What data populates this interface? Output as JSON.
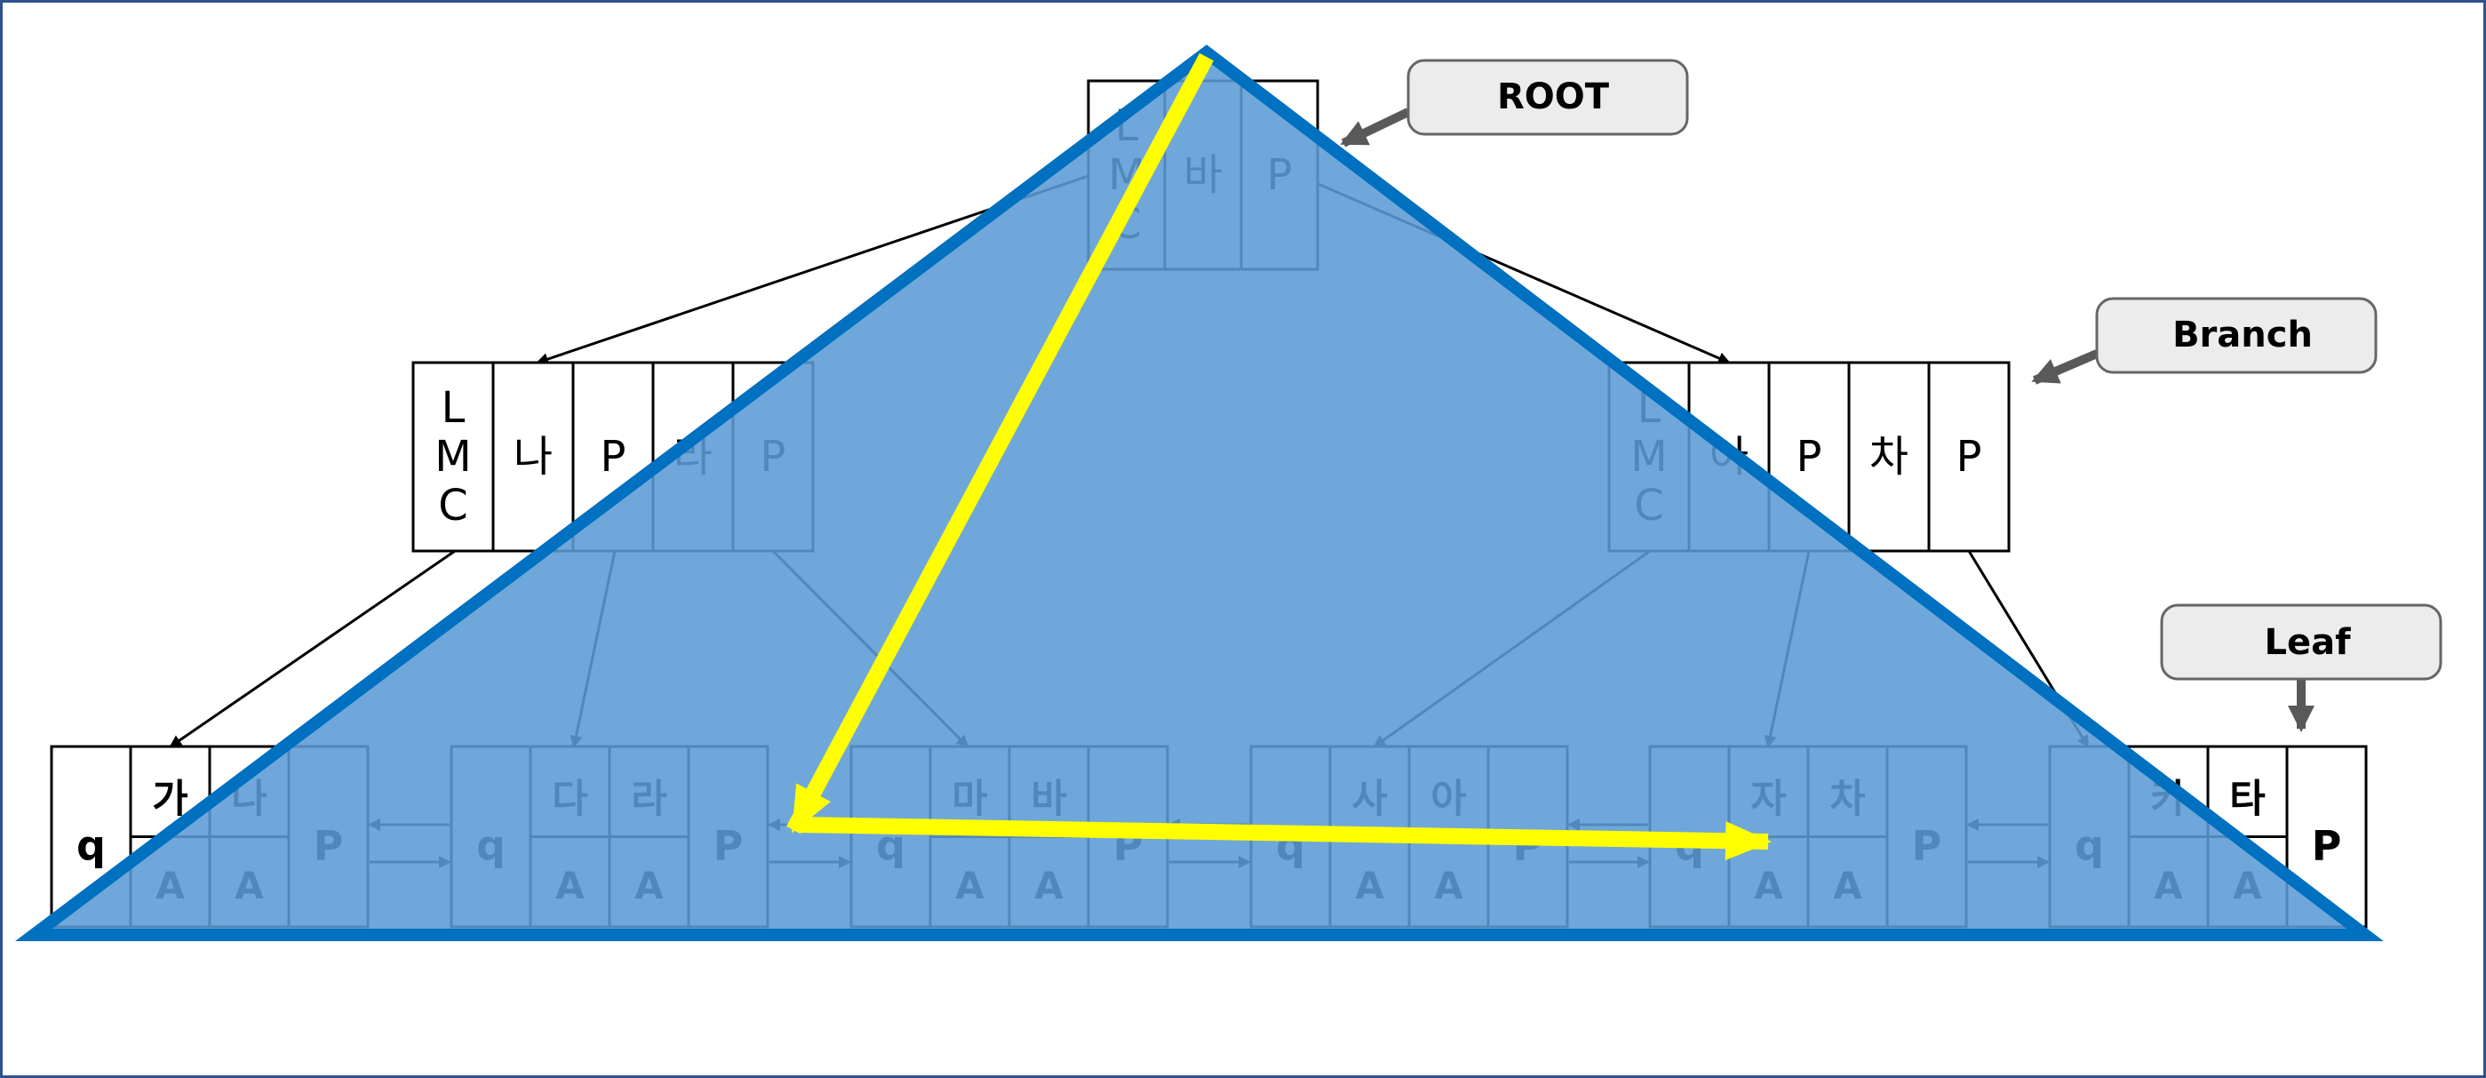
{
  "callouts": {
    "root": "ROOT",
    "branch": "Branch",
    "leaf": "Leaf"
  },
  "root_node": {
    "cells": [
      "L\nM\nC",
      "바",
      "P"
    ]
  },
  "branch_nodes": [
    {
      "cells": [
        "L\nM\nC",
        "나",
        "P",
        "라",
        "P"
      ]
    },
    {
      "cells": [
        "L\nM\nC",
        "아",
        "P",
        "차",
        "P"
      ]
    }
  ],
  "leaf_nodes": [
    {
      "prev": "q",
      "keys": [
        "가",
        "나"
      ],
      "rowids": [
        "A",
        "A"
      ],
      "next": "P"
    },
    {
      "prev": "q",
      "keys": [
        "다",
        "라"
      ],
      "rowids": [
        "A",
        "A"
      ],
      "next": "P"
    },
    {
      "prev": "q",
      "keys": [
        "마",
        "바"
      ],
      "rowids": [
        "A",
        "A"
      ],
      "next": "P"
    },
    {
      "prev": "q",
      "keys": [
        "사",
        "아"
      ],
      "rowids": [
        "A",
        "A"
      ],
      "next": "P"
    },
    {
      "prev": "q",
      "keys": [
        "자",
        "차"
      ],
      "rowids": [
        "A",
        "A"
      ],
      "next": "P"
    },
    {
      "prev": "q",
      "keys": [
        "카",
        "타"
      ],
      "rowids": [
        "A",
        "A"
      ],
      "next": "P"
    }
  ],
  "colors": {
    "triangle_fill": "#5b9bd5",
    "triangle_stroke": "#0070c0",
    "highlight_arrow": "#ffff00",
    "callout_fill": "#ececec",
    "callout_stroke": "#666666",
    "callout_arrow": "#595959"
  }
}
